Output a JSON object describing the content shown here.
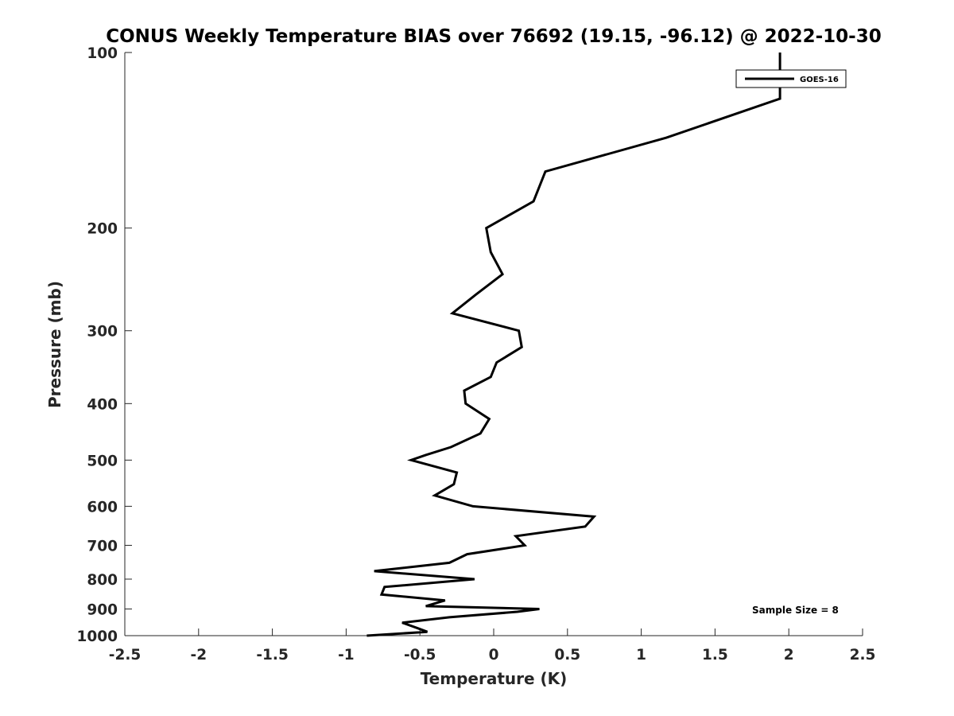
{
  "chart_data": {
    "type": "line",
    "title": "CONUS Weekly Temperature BIAS over 76692 (19.15, -96.12) @ 2022-10-30",
    "xlabel": "Temperature (K)",
    "ylabel": "Pressure (mb)",
    "xlim": [
      -2.5,
      2.5
    ],
    "ylim": [
      100,
      1000
    ],
    "y_scale": "log",
    "y_reversed": true,
    "grid": false,
    "x_ticks": [
      -2.5,
      -2,
      -1.5,
      -1,
      -0.5,
      0,
      0.5,
      1,
      1.5,
      2,
      2.5
    ],
    "x_tick_labels": [
      "-2.5",
      "-2",
      "-1.5",
      "-1",
      "-0.5",
      "0",
      "0.5",
      "1",
      "1.5",
      "2",
      "2.5"
    ],
    "y_ticks": [
      100,
      200,
      300,
      400,
      500,
      600,
      700,
      800,
      900,
      1000
    ],
    "y_tick_labels": [
      "100",
      "200",
      "300",
      "400",
      "500",
      "600",
      "700",
      "800",
      "900",
      "1000"
    ],
    "legend_position": "top-right",
    "annotation": "Sample Size = 8",
    "series": [
      {
        "name": "GOES-16",
        "color": "#000000",
        "points": [
          {
            "x": 1.94,
            "p": 100
          },
          {
            "x": 1.94,
            "p": 120
          },
          {
            "x": 1.17,
            "p": 140
          },
          {
            "x": 0.35,
            "p": 160
          },
          {
            "x": 0.27,
            "p": 180
          },
          {
            "x": -0.05,
            "p": 200
          },
          {
            "x": -0.02,
            "p": 220
          },
          {
            "x": 0.06,
            "p": 240
          },
          {
            "x": -0.12,
            "p": 260
          },
          {
            "x": -0.28,
            "p": 280
          },
          {
            "x": 0.17,
            "p": 300
          },
          {
            "x": 0.19,
            "p": 320
          },
          {
            "x": 0.02,
            "p": 340
          },
          {
            "x": -0.02,
            "p": 360
          },
          {
            "x": -0.2,
            "p": 380
          },
          {
            "x": -0.19,
            "p": 400
          },
          {
            "x": -0.03,
            "p": 425
          },
          {
            "x": -0.09,
            "p": 450
          },
          {
            "x": -0.29,
            "p": 475
          },
          {
            "x": -0.46,
            "p": 490
          },
          {
            "x": -0.56,
            "p": 500
          },
          {
            "x": -0.25,
            "p": 525
          },
          {
            "x": -0.27,
            "p": 550
          },
          {
            "x": -0.4,
            "p": 575
          },
          {
            "x": -0.14,
            "p": 600
          },
          {
            "x": 0.68,
            "p": 625
          },
          {
            "x": 0.62,
            "p": 650
          },
          {
            "x": 0.15,
            "p": 675
          },
          {
            "x": 0.21,
            "p": 700
          },
          {
            "x": -0.18,
            "p": 725
          },
          {
            "x": -0.3,
            "p": 750
          },
          {
            "x": -0.81,
            "p": 775
          },
          {
            "x": -0.13,
            "p": 800
          },
          {
            "x": -0.74,
            "p": 825
          },
          {
            "x": -0.76,
            "p": 850
          },
          {
            "x": -0.33,
            "p": 870
          },
          {
            "x": -0.46,
            "p": 890
          },
          {
            "x": 0.31,
            "p": 900
          },
          {
            "x": 0.16,
            "p": 910
          },
          {
            "x": -0.3,
            "p": 930
          },
          {
            "x": -0.62,
            "p": 950
          },
          {
            "x": -0.52,
            "p": 970
          },
          {
            "x": -0.45,
            "p": 985
          },
          {
            "x": -0.86,
            "p": 1000
          }
        ]
      }
    ]
  }
}
